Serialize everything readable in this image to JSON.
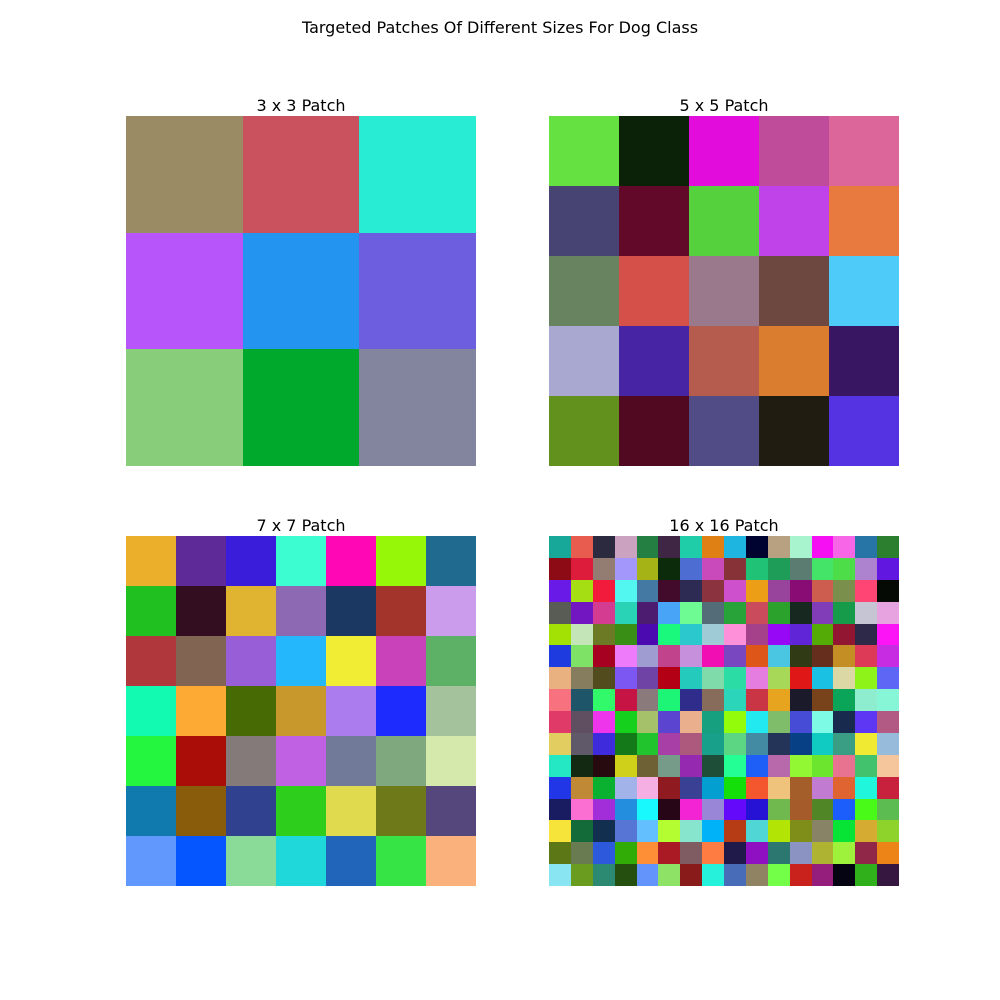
{
  "figure": {
    "title": "Targeted Patches Of Different Sizes For Dog Class"
  },
  "chart_data": [
    {
      "type": "heatmap",
      "title": "3 x 3 Patch",
      "rows": 3,
      "cols": 3,
      "grid": false,
      "colors": [
        [
          "#9b8b65",
          "#c9525e",
          "#28ecd4"
        ],
        [
          "#b755fb",
          "#2394ef",
          "#6d5ddf"
        ],
        [
          "#87cd7a",
          "#00a92c",
          "#83849e"
        ]
      ]
    },
    {
      "type": "heatmap",
      "title": "5 x 5 Patch",
      "rows": 5,
      "cols": 5,
      "grid": false,
      "colors": [
        [
          "#65e242",
          "#0b2208",
          "#e20cdd",
          "#bf4b9b",
          "#dc6699"
        ],
        [
          "#474474",
          "#620828",
          "#56d13e",
          "#bf43e8",
          "#e87a40"
        ],
        [
          "#678360",
          "#d55048",
          "#9a798d",
          "#6c4840",
          "#4fcbf9"
        ],
        [
          "#a8a8d0",
          "#4724a4",
          "#b65c4f",
          "#da7d2f",
          "#381662"
        ],
        [
          "#63911d",
          "#510922",
          "#514c86",
          "#201c12",
          "#5532e2"
        ]
      ]
    },
    {
      "type": "heatmap",
      "title": "7 x 7 Patch",
      "rows": 7,
      "cols": 7,
      "grid": false,
      "colors": [
        [
          "#ecaf2b",
          "#5d2a97",
          "#391ddb",
          "#3cfdd1",
          "#ff07b5",
          "#97f708",
          "#1f6a8e"
        ],
        [
          "#1fc020",
          "#320e20",
          "#e0b330",
          "#8d68b3",
          "#1a3862",
          "#a2342b",
          "#ca9ceb"
        ],
        [
          "#b0373b",
          "#816552",
          "#985ed8",
          "#24b7fb",
          "#f0ed34",
          "#ca42b9",
          "#5cb167"
        ],
        [
          "#12fab1",
          "#fdaa34",
          "#476a04",
          "#c9982c",
          "#ab7ced",
          "#1e2bfe",
          "#a4c29b"
        ],
        [
          "#24f53f",
          "#aa0c08",
          "#857a7a",
          "#c060e3",
          "#717b99",
          "#80a87f",
          "#d5e9ac"
        ],
        [
          "#1079ad",
          "#885c0a",
          "#30418f",
          "#2ecf1c",
          "#e0da4f",
          "#6e7919",
          "#55477b"
        ],
        [
          "#6098fe",
          "#0556fe",
          "#8adb98",
          "#1ed8da",
          "#2165ba",
          "#36e545",
          "#fab17c"
        ]
      ]
    },
    {
      "type": "heatmap",
      "title": "16 x 16 Patch",
      "rows": 16,
      "cols": 16,
      "grid": false,
      "colors": [
        [
          "#17a89a",
          "#e75c4f",
          "#2c2a3f",
          "#cba3c0",
          "#248042",
          "#402645",
          "#1fcda9",
          "#df8015",
          "#1eb5e1",
          "#000230",
          "#b7a181",
          "#a7f4cf",
          "#f60ff2",
          "#f666e7",
          "#2774a7",
          "#2b7f2e"
        ],
        [
          "#8d0b14",
          "#dc1c3a",
          "#937d73",
          "#a397fb",
          "#a6b316",
          "#0c2b0b",
          "#4d6dd2",
          "#c94bbb",
          "#873236",
          "#20c276",
          "#1d9d58",
          "#5b7d71",
          "#43e468",
          "#4ddd48",
          "#ad83d0",
          "#6217e0"
        ],
        [
          "#6a1ae6",
          "#a6de14",
          "#f31b3c",
          "#52f8f0",
          "#4379a2",
          "#420b2b",
          "#2d2b53",
          "#8b3440",
          "#cf50cc",
          "#ec9e16",
          "#99449c",
          "#880c73",
          "#cc5d4f",
          "#7b8f4d",
          "#fe4574",
          "#050a04"
        ],
        [
          "#595b55",
          "#7116c1",
          "#d43c92",
          "#29d3b5",
          "#4b1c6f",
          "#48a4f7",
          "#6efb94",
          "#546c77",
          "#28a33a",
          "#ca4b5b",
          "#2aa22c",
          "#16281f",
          "#813db8",
          "#159b4a",
          "#c5c5d3",
          "#e7a3e0"
        ],
        [
          "#a2e103",
          "#c3e5b8",
          "#6c7a26",
          "#398e16",
          "#4a0aaf",
          "#1bf97c",
          "#2bc9ce",
          "#9fcbd6",
          "#fd90d8",
          "#a5418a",
          "#9608f6",
          "#6125d8",
          "#54ab06",
          "#921632",
          "#2e2948",
          "#fc14f6"
        ],
        [
          "#1e3be0",
          "#7de266",
          "#a70122",
          "#ee7bfa",
          "#9e9cd0",
          "#c1438c",
          "#c690dd",
          "#f10fb3",
          "#7948c0",
          "#df5718",
          "#4ac6e3",
          "#303a14",
          "#662f1d",
          "#c58e24",
          "#dc3a56",
          "#c82ce2"
        ],
        [
          "#eab180",
          "#857d5e",
          "#514b1e",
          "#7c57f1",
          "#6f42a6",
          "#b40014",
          "#24cbbd",
          "#80dbaa",
          "#2bdca5",
          "#e57de0",
          "#a7d858",
          "#df1717",
          "#1bc1e3",
          "#dcd8a6",
          "#8ef318",
          "#5e67f5"
        ],
        [
          "#f7727e",
          "#1f5568",
          "#31f96a",
          "#c61444",
          "#8b7a7b",
          "#1df576",
          "#2f2c8c",
          "#876b5b",
          "#2ad5ba",
          "#c93544",
          "#e6a41f",
          "#1a1a2b",
          "#78421a",
          "#0aa558",
          "#8eeccf",
          "#86f6d7"
        ],
        [
          "#e03a68",
          "#604f60",
          "#ef35ec",
          "#15d01d",
          "#a5c26a",
          "#5a44d0",
          "#eaaf8c",
          "#17a07f",
          "#93fc0a",
          "#22e8f0",
          "#7fbd6a",
          "#464cd6",
          "#7dfbe5",
          "#182a4d",
          "#5e37f5",
          "#b25a84"
        ],
        [
          "#e2ce60",
          "#60596a",
          "#3e2bdc",
          "#137919",
          "#22c42d",
          "#a73fa6",
          "#ac597d",
          "#18a08a",
          "#5dd684",
          "#428ba3",
          "#233458",
          "#074084",
          "#0fcbc2",
          "#3a9e84",
          "#f1ea32",
          "#96bbdb"
        ],
        [
          "#24e7c3",
          "#132912",
          "#260a10",
          "#cfd01a",
          "#6d6135",
          "#779b89",
          "#952ab0",
          "#1e4e37",
          "#23fe95",
          "#1e5ff7",
          "#b769ac",
          "#91f833",
          "#6ce52f",
          "#e77390",
          "#42c26c",
          "#f5c59c"
        ],
        [
          "#2137e7",
          "#bf8936",
          "#0ab130",
          "#a1b3e8",
          "#f6afe3",
          "#8f1a20",
          "#3a4094",
          "#039fd1",
          "#14df08",
          "#f4572d",
          "#f0c37d",
          "#a45e2a",
          "#c17bd0",
          "#e06432",
          "#1ff6db",
          "#c7213d"
        ],
        [
          "#1a1c62",
          "#fc6fd2",
          "#a22ed9",
          "#238ede",
          "#17f9fd",
          "#270618",
          "#f324d4",
          "#9a86d6",
          "#6509fb",
          "#2512d4",
          "#6fb94f",
          "#a55b2a",
          "#508625",
          "#1b5efc",
          "#49f917",
          "#5cbb51"
        ],
        [
          "#f6e43b",
          "#146b3a",
          "#122f4f",
          "#5675d4",
          "#63bffd",
          "#b3fd30",
          "#86e5cc",
          "#00b2f8",
          "#b63c15",
          "#4fd6d5",
          "#b2e505",
          "#7e8e19",
          "#888367",
          "#08e435",
          "#d5ac31",
          "#8dd32c"
        ],
        [
          "#5c7716",
          "#697c51",
          "#2d59dd",
          "#31ac06",
          "#fe8f37",
          "#aa1a24",
          "#7e5c61",
          "#fe7b41",
          "#201a4a",
          "#8f10c3",
          "#2c776f",
          "#8b93c2",
          "#aeb332",
          "#9ef23c",
          "#902748",
          "#ec8418"
        ],
        [
          "#8ae5f3",
          "#6a9c1f",
          "#2b8a71",
          "#254f0e",
          "#6394fb",
          "#8ee265",
          "#891c1b",
          "#26f2dc",
          "#496cb8",
          "#8f8364",
          "#73fe48",
          "#c9211b",
          "#951e7c",
          "#040413",
          "#30b11c",
          "#35173f"
        ]
      ]
    }
  ]
}
